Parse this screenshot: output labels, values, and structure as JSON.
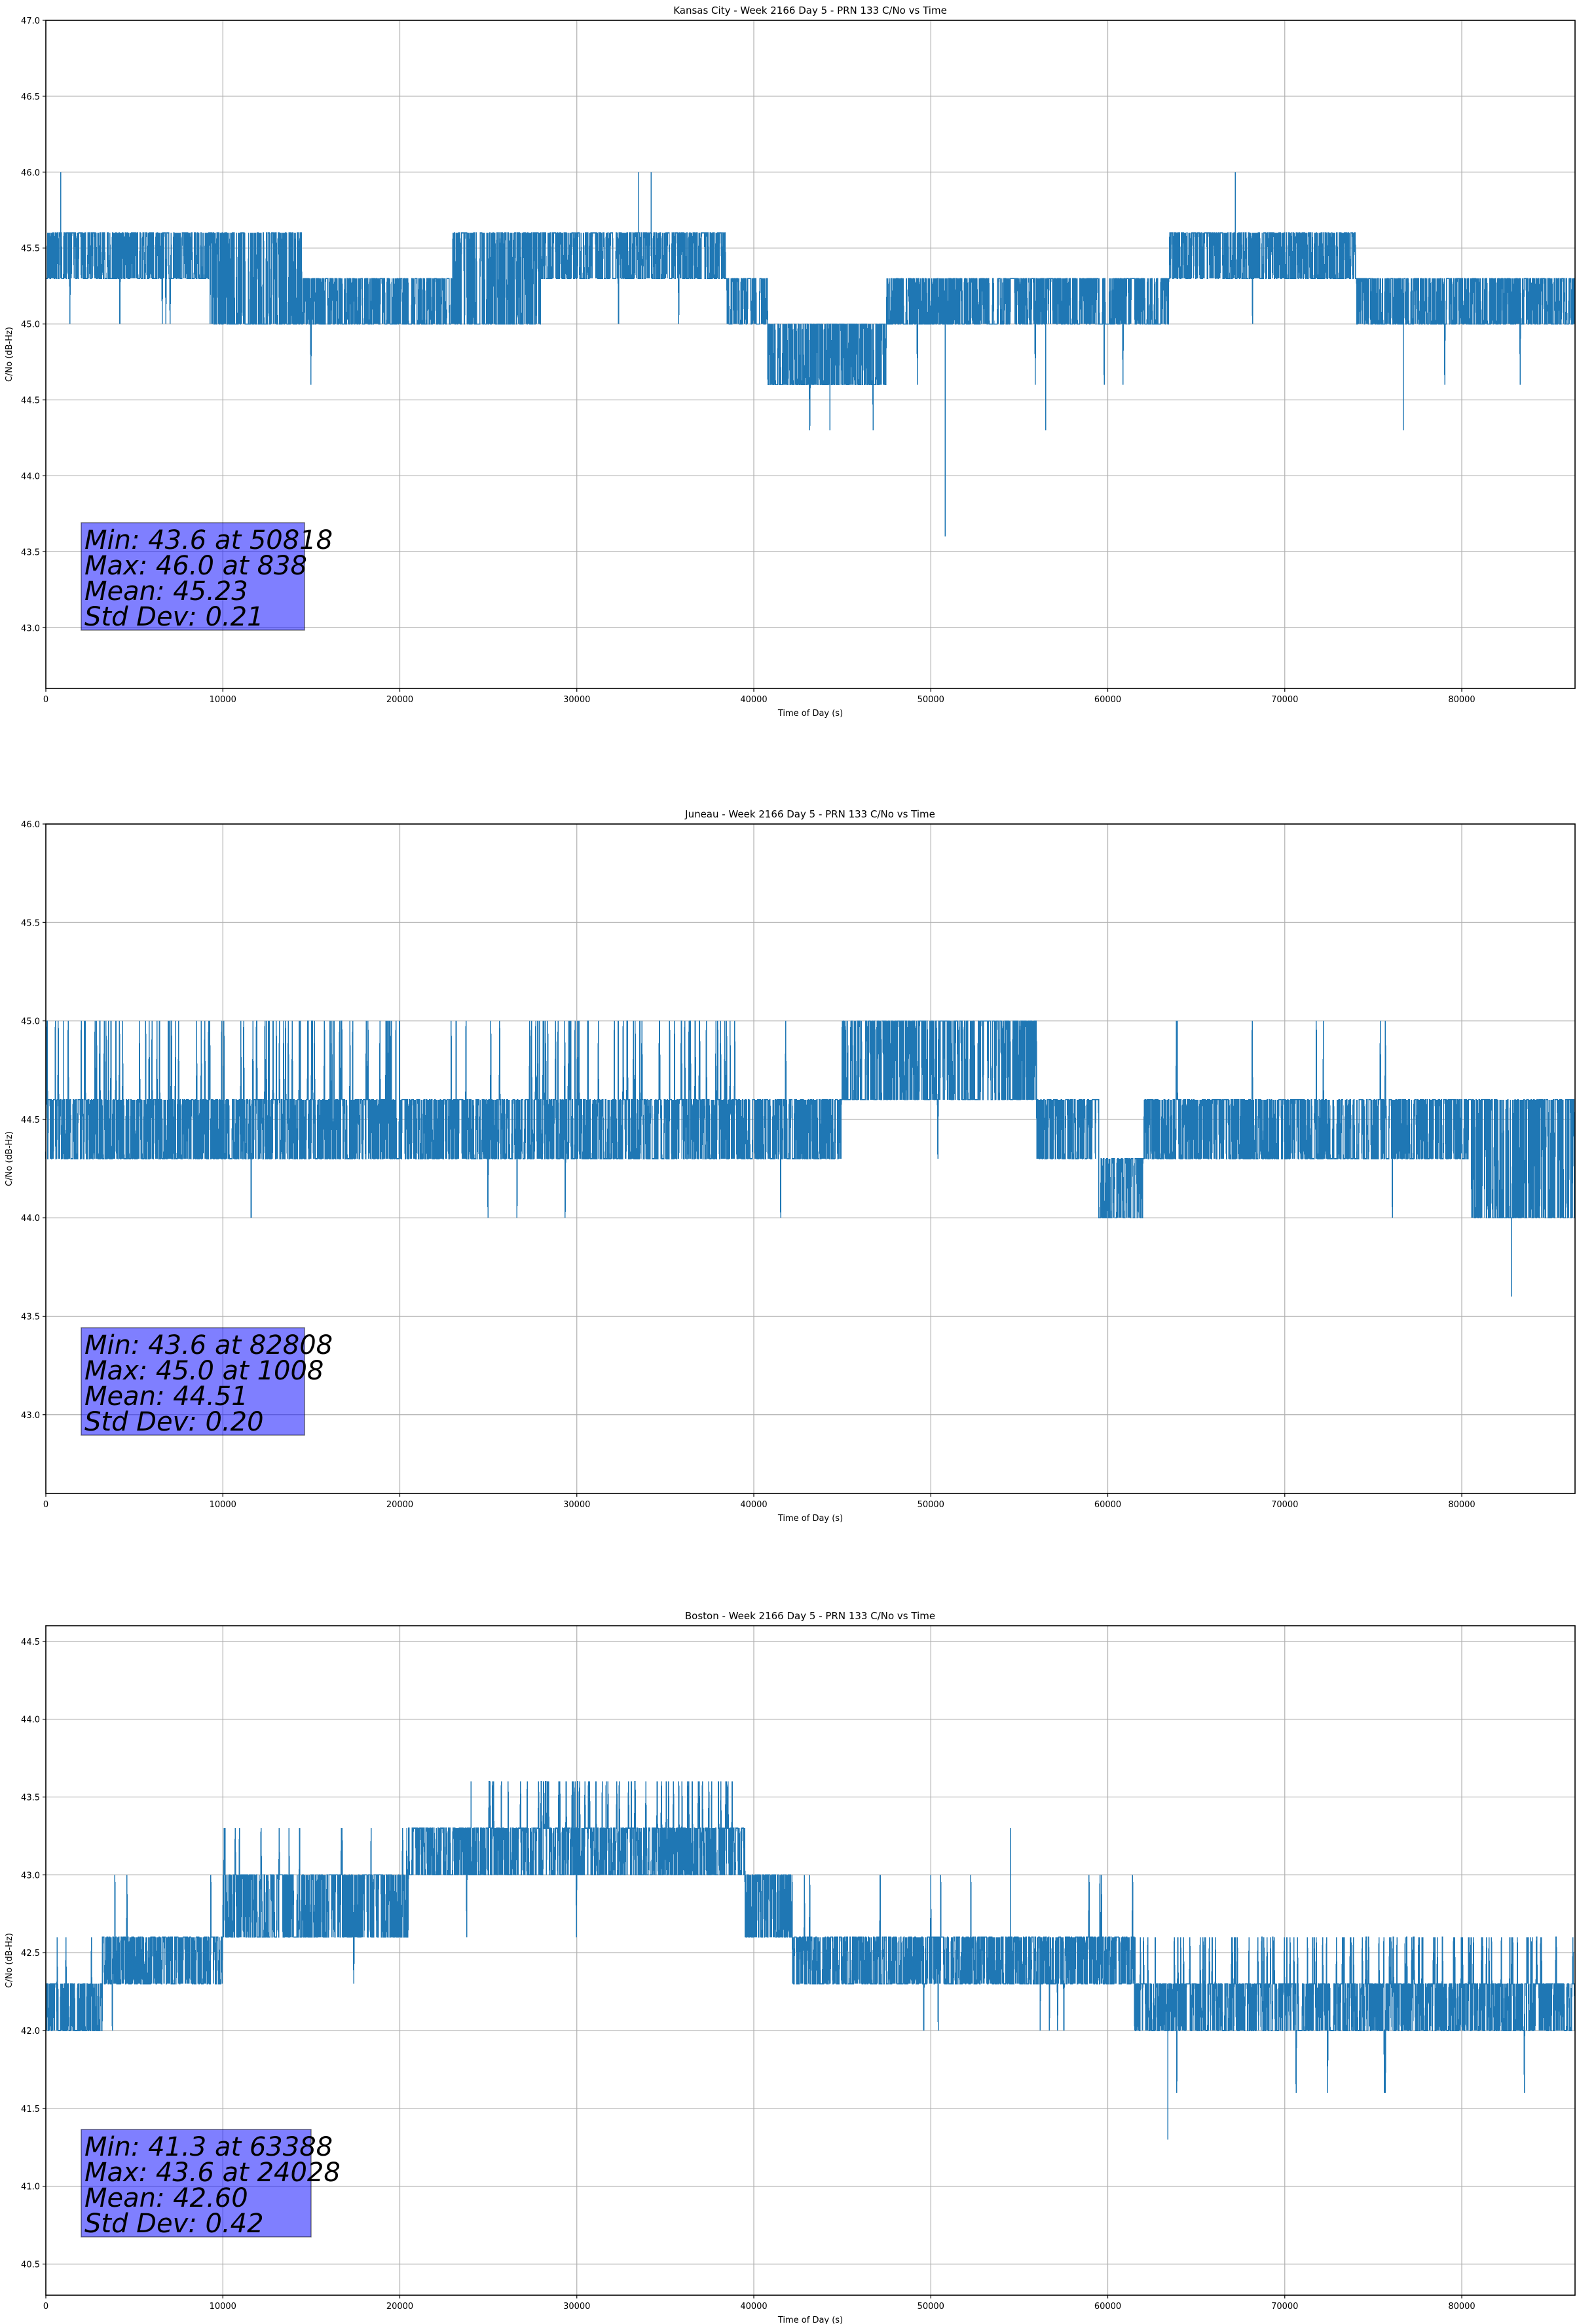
{
  "chart_data": [
    {
      "type": "line",
      "title": "Kansas City - Week 2166 Day 5 - PRN 133 C/No vs Time",
      "xlabel": "Time of Day (s)",
      "ylabel": "C/No (dB-Hz)",
      "xlim": [
        0,
        86400
      ],
      "ylim": [
        42.6,
        47.0
      ],
      "xticks": [
        0,
        10000,
        20000,
        30000,
        40000,
        50000,
        60000,
        70000,
        80000
      ],
      "xtick_labels": [
        "0",
        "10000",
        "20000",
        "30000",
        "40000",
        "50000",
        "60000",
        "70000",
        "80000"
      ],
      "yticks": [
        43.0,
        43.5,
        44.0,
        44.5,
        45.0,
        45.5,
        46.0,
        46.5,
        47.0
      ],
      "ytick_labels": [
        "43.0",
        "43.5",
        "44.0",
        "44.5",
        "45.0",
        "45.5",
        "46.0",
        "46.5",
        "47.0"
      ],
      "grid": true,
      "series": [
        {
          "name": "Kansas City C/No",
          "color": "#1f77b4",
          "quantization_step": 0.3,
          "segments": [
            {
              "x": [
                0,
                9200
              ],
              "low": 45.3,
              "high": 45.6,
              "dip": 45.0
            },
            {
              "x": [
                9200,
                14500
              ],
              "low": 45.0,
              "high": 45.6,
              "dip": 45.0
            },
            {
              "x": [
                14500,
                23000
              ],
              "low": 45.0,
              "high": 45.3,
              "dip": 44.6
            },
            {
              "x": [
                23000,
                28000
              ],
              "low": 45.0,
              "high": 45.6,
              "dip": 44.6
            },
            {
              "x": [
                28000,
                38500
              ],
              "low": 45.3,
              "high": 45.6,
              "dip": 45.0
            },
            {
              "x": [
                38500,
                40800
              ],
              "low": 45.0,
              "high": 45.3,
              "dip": 44.6
            },
            {
              "x": [
                40800,
                47500
              ],
              "low": 44.6,
              "high": 45.0,
              "dip": 44.3
            },
            {
              "x": [
                47500,
                50000
              ],
              "low": 45.0,
              "high": 45.3,
              "dip": 44.6
            },
            {
              "x": [
                50000,
                63500
              ],
              "low": 45.0,
              "high": 45.3,
              "dip": 44.6
            },
            {
              "x": [
                63500,
                74000
              ],
              "low": 45.3,
              "high": 45.6,
              "dip": 45.0
            },
            {
              "x": [
                74000,
                86400
              ],
              "low": 45.0,
              "high": 45.3,
              "dip": 44.6
            }
          ],
          "extremes": [
            {
              "x": 838,
              "y": 46.0
            },
            {
              "x": 33500,
              "y": 46.0
            },
            {
              "x": 34200,
              "y": 46.0
            },
            {
              "x": 67200,
              "y": 46.0
            },
            {
              "x": 50818,
              "y": 43.6
            },
            {
              "x": 44300,
              "y": 44.3
            },
            {
              "x": 56500,
              "y": 44.3
            },
            {
              "x": 76700,
              "y": 44.3
            }
          ]
        }
      ],
      "annotation": {
        "lines": [
          "Min: 43.6 at 50818",
          "Max: 46.0 at 838",
          "Mean: 45.23",
          "Std Dev: 0.21"
        ],
        "min": 43.6,
        "min_time": 50818,
        "max": 46.0,
        "max_time": 838,
        "mean": 45.23,
        "std_dev": 0.21,
        "placement": "bottom-left",
        "background_color": "#8080ff"
      }
    },
    {
      "type": "line",
      "title": "Juneau - Week 2166 Day 5 - PRN 133 C/No vs Time",
      "xlabel": "Time of Day (s)",
      "ylabel": "C/No (dB-Hz)",
      "xlim": [
        0,
        86400
      ],
      "ylim": [
        42.6,
        46.0
      ],
      "xticks": [
        0,
        10000,
        20000,
        30000,
        40000,
        50000,
        60000,
        70000,
        80000
      ],
      "xtick_labels": [
        "0",
        "10000",
        "20000",
        "30000",
        "40000",
        "50000",
        "60000",
        "70000",
        "80000"
      ],
      "yticks": [
        43.0,
        43.5,
        44.0,
        44.5,
        45.0,
        45.5,
        46.0
      ],
      "ytick_labels": [
        "43.0",
        "43.5",
        "44.0",
        "44.5",
        "45.0",
        "45.5",
        "46.0"
      ],
      "grid": true,
      "series": [
        {
          "name": "Juneau C/No",
          "color": "#1f77b4",
          "quantization_step": 0.3,
          "segments": [
            {
              "x": [
                0,
                20000
              ],
              "low": 44.3,
              "high": 44.6,
              "spike": 45.0,
              "spike_rate": 0.35,
              "dip": 44.0
            },
            {
              "x": [
                20000,
                27000
              ],
              "low": 44.3,
              "high": 44.6,
              "spike": 45.0,
              "spike_rate": 0.02,
              "dip": 44.0
            },
            {
              "x": [
                27000,
                39000
              ],
              "low": 44.3,
              "high": 44.6,
              "spike": 45.0,
              "spike_rate": 0.35,
              "dip": 44.0
            },
            {
              "x": [
                39000,
                45000
              ],
              "low": 44.3,
              "high": 44.6,
              "spike": 45.0,
              "spike_rate": 0.02,
              "dip": 44.0
            },
            {
              "x": [
                45000,
                56000
              ],
              "low": 44.6,
              "high": 45.0,
              "dip": 44.3
            },
            {
              "x": [
                56000,
                59500
              ],
              "low": 44.3,
              "high": 44.6,
              "dip": 44.0
            },
            {
              "x": [
                59500,
                62000
              ],
              "low": 44.0,
              "high": 44.3,
              "dip": 44.0
            },
            {
              "x": [
                62000,
                76000
              ],
              "low": 44.3,
              "high": 44.6,
              "spike": 45.0,
              "spike_rate": 0.04,
              "dip": 44.0
            },
            {
              "x": [
                76000,
                80500
              ],
              "low": 44.3,
              "high": 44.6,
              "dip": 44.0
            },
            {
              "x": [
                80500,
                86400
              ],
              "low": 44.0,
              "high": 44.6,
              "dip": 44.0
            }
          ],
          "extremes": [
            {
              "x": 1008,
              "y": 45.0
            },
            {
              "x": 82808,
              "y": 43.6
            },
            {
              "x": 11600,
              "y": 44.0
            }
          ]
        }
      ],
      "annotation": {
        "lines": [
          "Min: 43.6 at 82808",
          "Max: 45.0 at 1008",
          "Mean: 44.51",
          "Std Dev: 0.20"
        ],
        "min": 43.6,
        "min_time": 82808,
        "max": 45.0,
        "max_time": 1008,
        "mean": 44.51,
        "std_dev": 0.2,
        "placement": "bottom-left",
        "background_color": "#8080ff"
      }
    },
    {
      "type": "line",
      "title": "Boston - Week 2166 Day 5 - PRN 133 C/No vs Time",
      "xlabel": "Time of Day (s)",
      "ylabel": "C/No (dB-Hz)",
      "xlim": [
        0,
        86400
      ],
      "ylim": [
        40.3,
        44.6
      ],
      "xticks": [
        0,
        10000,
        20000,
        30000,
        40000,
        50000,
        60000,
        70000,
        80000
      ],
      "xtick_labels": [
        "0",
        "10000",
        "20000",
        "30000",
        "40000",
        "50000",
        "60000",
        "70000",
        "80000"
      ],
      "yticks": [
        40.5,
        41.0,
        41.5,
        42.0,
        42.5,
        43.0,
        43.5,
        44.0,
        44.5
      ],
      "ytick_labels": [
        "40.5",
        "41.0",
        "41.5",
        "42.0",
        "42.5",
        "43.0",
        "43.5",
        "44.0",
        "44.5"
      ],
      "grid": true,
      "series": [
        {
          "name": "Boston C/No",
          "color": "#1f77b4",
          "quantization_step": 0.3,
          "segments": [
            {
              "x": [
                0,
                3200
              ],
              "low": 42.0,
              "high": 42.3,
              "spike": 42.6,
              "spike_rate": 0.05
            },
            {
              "x": [
                3200,
                10000
              ],
              "low": 42.3,
              "high": 42.6,
              "spike": 43.0,
              "spike_rate": 0.05,
              "dip": 42.0
            },
            {
              "x": [
                10000,
                20500
              ],
              "low": 42.6,
              "high": 43.0,
              "spike": 43.3,
              "spike_rate": 0.08,
              "dip": 42.3
            },
            {
              "x": [
                20500,
                25000
              ],
              "low": 43.0,
              "high": 43.3,
              "dip": 42.6
            },
            {
              "x": [
                25000,
                39500
              ],
              "low": 43.0,
              "high": 43.3,
              "spike": 43.6,
              "spike_rate": 0.3,
              "dip": 42.6
            },
            {
              "x": [
                39500,
                42200
              ],
              "low": 42.6,
              "high": 43.0,
              "dip": 42.3
            },
            {
              "x": [
                42200,
                61500
              ],
              "low": 42.3,
              "high": 42.6,
              "spike": 43.0,
              "spike_rate": 0.05,
              "dip": 42.0
            },
            {
              "x": [
                61500,
                86400
              ],
              "low": 42.0,
              "high": 42.3,
              "spike": 42.6,
              "spike_rate": 0.35,
              "dip": 41.6
            }
          ],
          "extremes": [
            {
              "x": 24028,
              "y": 43.6
            },
            {
              "x": 54500,
              "y": 43.3
            },
            {
              "x": 63388,
              "y": 41.3
            }
          ]
        }
      ],
      "annotation": {
        "lines": [
          "Min: 41.3 at 63388",
          "Max: 43.6 at 24028",
          "Mean: 42.60",
          "Std Dev: 0.42"
        ],
        "min": 41.3,
        "min_time": 63388,
        "max": 43.6,
        "max_time": 24028,
        "mean": 42.6,
        "std_dev": 0.42,
        "placement": "bottom-left",
        "background_color": "#8080ff"
      }
    }
  ]
}
